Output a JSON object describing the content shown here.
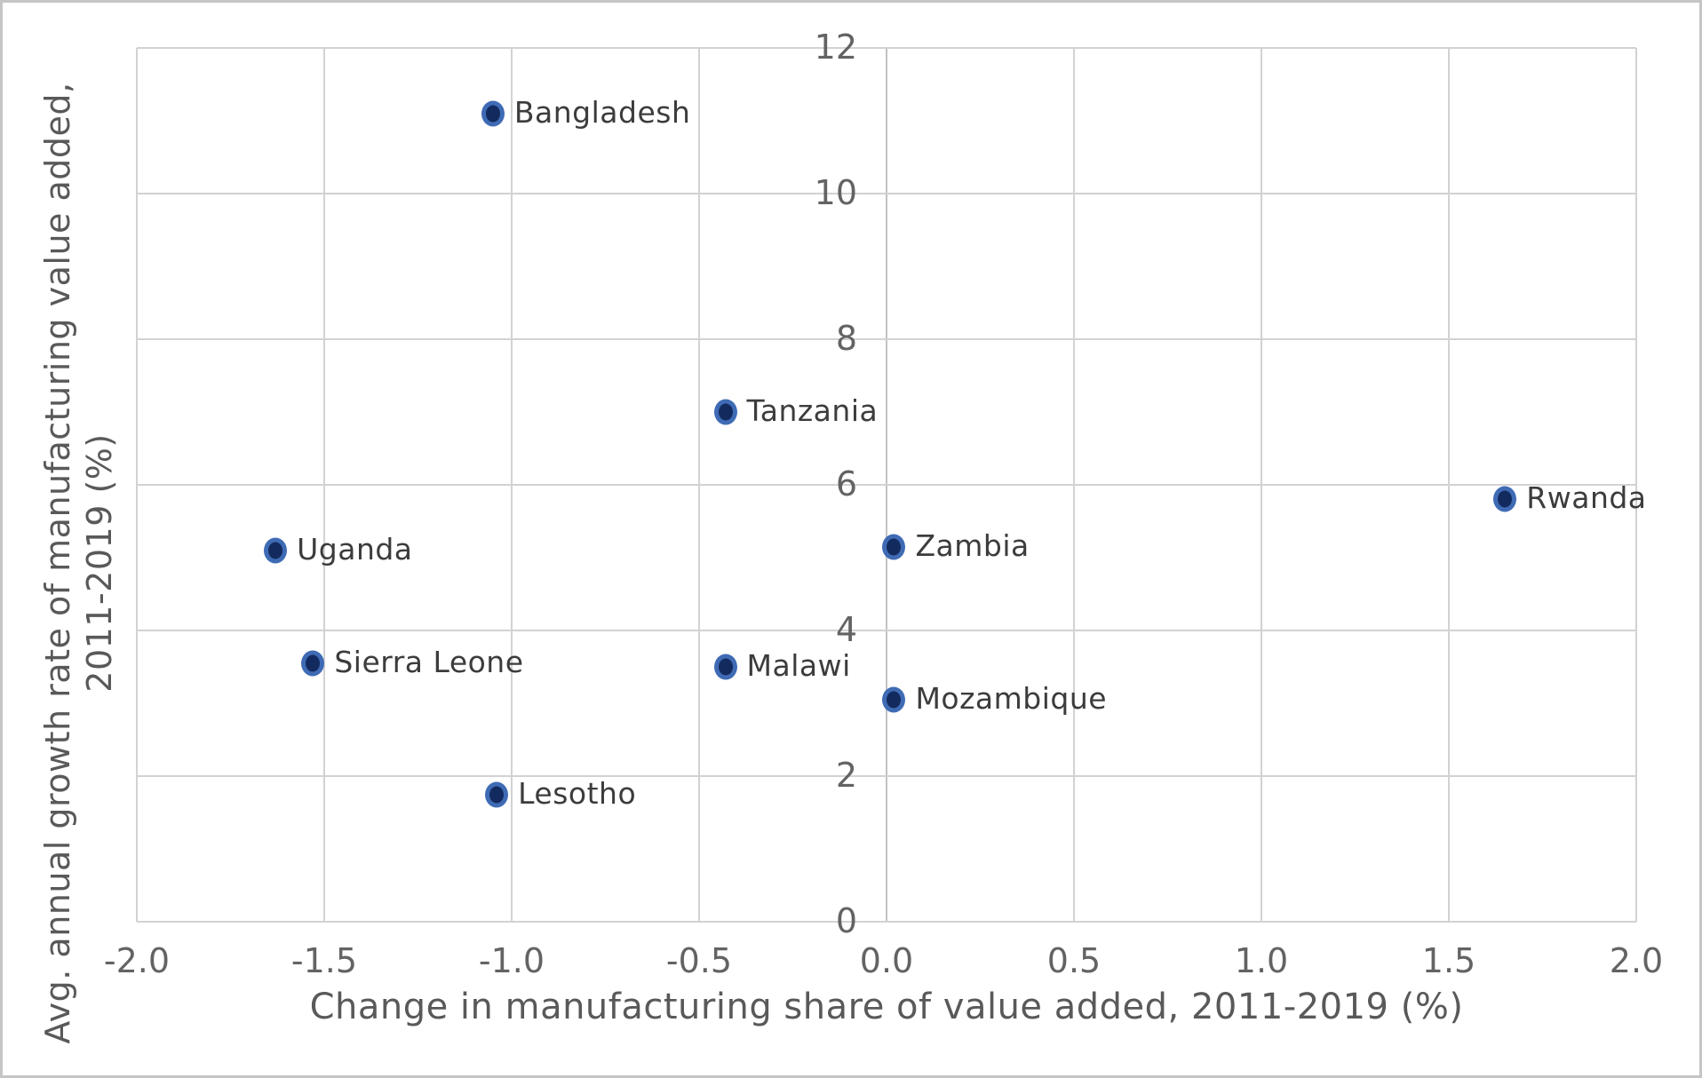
{
  "chart_data": {
    "type": "scatter",
    "title": "",
    "xlabel": "Change in manufacturing share of value added, 2011-2019 (%)",
    "ylabel_line1": "Avg. annual growth rate of manufacturing value added,",
    "ylabel_line2": "2011-2019 (%)",
    "xlim": [
      -2.0,
      2.0
    ],
    "ylim": [
      0,
      12
    ],
    "grid": true,
    "legend": "none",
    "x_ticks": [
      -2.0,
      -1.5,
      -1.0,
      -0.5,
      0.0,
      0.5,
      1.0,
      1.5,
      2.0
    ],
    "x_tick_labels": [
      "-2.0",
      "-1.5",
      "-1.0",
      "-0.5",
      "0.0",
      "0.5",
      "1.0",
      "1.5",
      "2.0"
    ],
    "y_ticks": [
      0,
      2,
      4,
      6,
      8,
      10,
      12
    ],
    "y_tick_labels": [
      "0",
      "2",
      "4",
      "6",
      "8",
      "10",
      "12"
    ],
    "points": [
      {
        "label": "Bangladesh",
        "x": -1.05,
        "y": 11.1
      },
      {
        "label": "Tanzania",
        "x": -0.43,
        "y": 7.0
      },
      {
        "label": "Rwanda",
        "x": 1.65,
        "y": 5.8
      },
      {
        "label": "Zambia",
        "x": 0.02,
        "y": 5.15
      },
      {
        "label": "Uganda",
        "x": -1.63,
        "y": 5.1
      },
      {
        "label": "Sierra Leone",
        "x": -1.53,
        "y": 3.55
      },
      {
        "label": "Malawi",
        "x": -0.43,
        "y": 3.5
      },
      {
        "label": "Mozambique",
        "x": 0.02,
        "y": 3.05
      },
      {
        "label": "Lesotho",
        "x": -1.04,
        "y": 1.75
      }
    ],
    "marker_style": {
      "fill_color": "#132a5e",
      "ring_color": "#3f6bb5"
    },
    "colors": {
      "gridline": "#d2d2d2",
      "zero_gridline": "#c2c2c2",
      "tick_text": "#636363",
      "axis_title_text": "#595959",
      "point_label_text": "#3c3c3c",
      "canvas_border": "#c5c5c5",
      "background": "#ffffff"
    }
  }
}
